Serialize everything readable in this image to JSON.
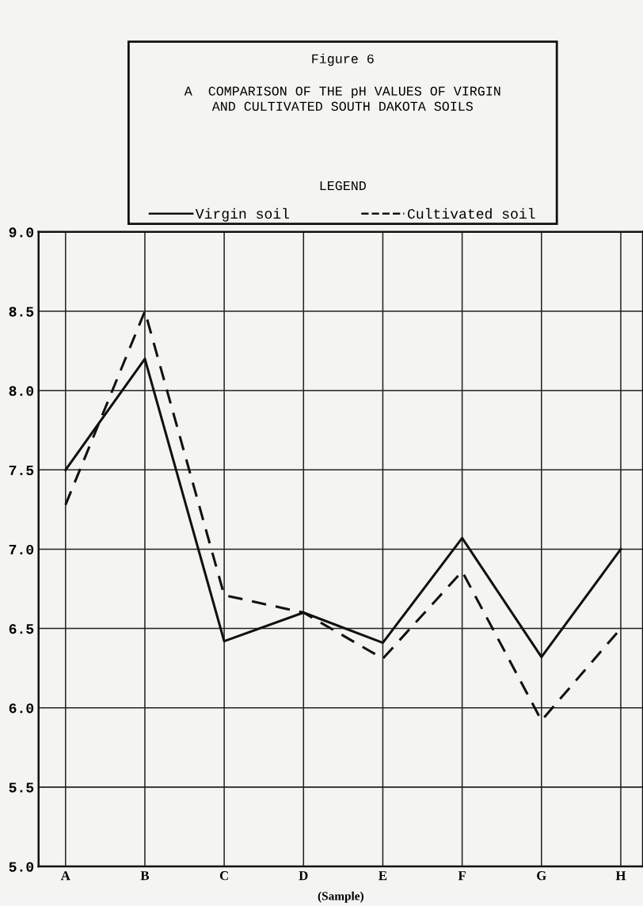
{
  "chart_data": {
    "type": "line",
    "title": "Figure 6",
    "subtitle": "A  COMPARISON OF THE pH VALUES OF VIRGIN\nAND CULTIVATED SOUTH DAKOTA SOILS",
    "legend_title": "LEGEND",
    "xlabel": "(Sample)",
    "categories": [
      "A",
      "B",
      "C",
      "D",
      "E",
      "F",
      "G",
      "H"
    ],
    "series": [
      {
        "name": "Virgin soil",
        "color": "#111111",
        "line_style": "solid",
        "values": [
          7.5,
          8.2,
          6.42,
          6.6,
          6.41,
          7.07,
          6.32,
          7.0
        ]
      },
      {
        "name": "Cultivated soil",
        "color": "#111111",
        "line_style": "dashed",
        "values": [
          7.28,
          8.5,
          6.71,
          6.6,
          6.31,
          6.86,
          5.92,
          6.5
        ]
      }
    ],
    "ylim": [
      5.0,
      9.0
    ],
    "yticks": [
      {
        "value": 5.0,
        "label": "5.0"
      },
      {
        "value": 5.5,
        "label": "5.5"
      },
      {
        "value": 6.0,
        "label": "6.0"
      },
      {
        "value": 6.5,
        "label": "6.5"
      },
      {
        "value": 7.0,
        "label": "7.0"
      },
      {
        "value": 7.5,
        "label": "7.5"
      },
      {
        "value": 8.0,
        "label": "8.0"
      },
      {
        "value": 8.5,
        "label": "8.5"
      },
      {
        "value": 9.0,
        "label": "9.0"
      }
    ],
    "grid": true,
    "legend": "top",
    "marker": "none"
  }
}
